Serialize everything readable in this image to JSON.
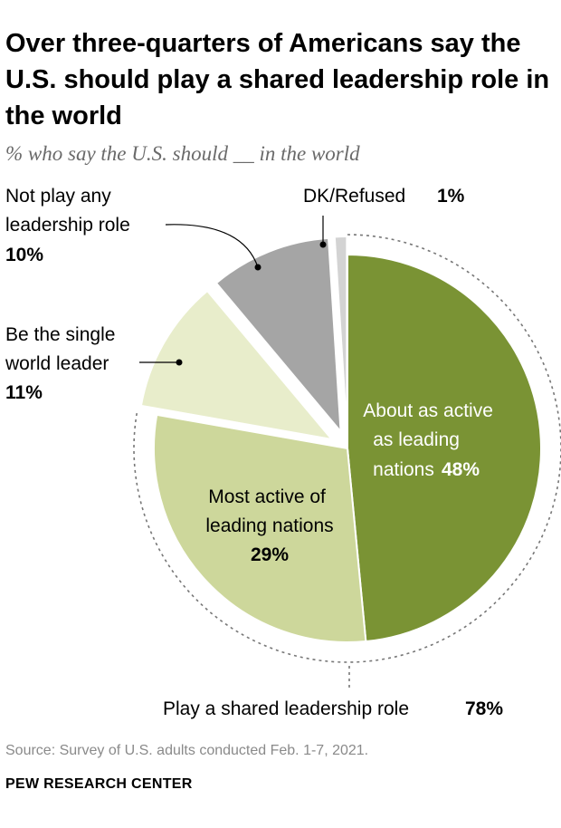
{
  "title": "Over three-quarters of Americans say the U.S. should play a shared leadership role in the world",
  "subtitle": "% who say the U.S. should __ in the world",
  "chart_data": {
    "type": "pie",
    "slices": [
      {
        "name": "About as active as leading nations",
        "value": 48,
        "color": "#7a9334"
      },
      {
        "name": "Most active of leading nations",
        "value": 29,
        "color": "#cdd79b"
      },
      {
        "name": "Be the single world leader",
        "value": 11,
        "color": "#e8edcb"
      },
      {
        "name": "Not play any leadership role",
        "value": 10,
        "color": "#a5a5a5"
      },
      {
        "name": "DK/Refused",
        "value": 1,
        "color": "#d3d3d3"
      }
    ],
    "labels": {
      "about_line1": "About as active",
      "about_line2": "as leading",
      "about_line3": "nations",
      "about_value": "48%",
      "most_line1": "Most active of",
      "most_line2": "leading nations",
      "most_value": "29%",
      "single_line1": "Be the single",
      "single_line2": "world leader",
      "single_value": "11%",
      "notplay_line1": "Not play any",
      "notplay_line2": "leadership role",
      "notplay_value": "10%",
      "dk_label": "DK/Refused",
      "dk_value": "1%"
    },
    "group": {
      "label": "Play a shared leadership role",
      "value": "78%",
      "members": [
        "About as active as leading nations",
        "Most active of leading nations"
      ]
    }
  },
  "source": "Source: Survey of U.S. adults conducted Feb. 1-7, 2021.",
  "brand": "PEW RESEARCH CENTER"
}
